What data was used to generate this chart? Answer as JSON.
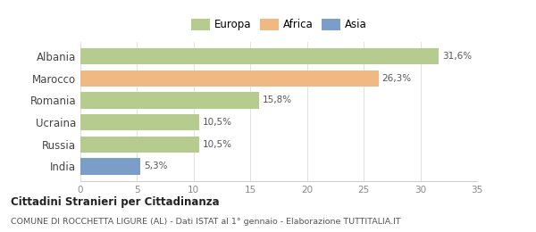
{
  "categories": [
    "Albania",
    "Marocco",
    "Romania",
    "Ucraina",
    "Russia",
    "India"
  ],
  "values": [
    31.6,
    26.3,
    15.8,
    10.5,
    10.5,
    5.3
  ],
  "labels": [
    "31,6%",
    "26,3%",
    "15,8%",
    "10,5%",
    "10,5%",
    "5,3%"
  ],
  "colors": [
    "#b5cc8e",
    "#f0b984",
    "#b5cc8e",
    "#b5cc8e",
    "#b5cc8e",
    "#7b9ec9"
  ],
  "legend": [
    {
      "label": "Europa",
      "color": "#b5cc8e"
    },
    {
      "label": "Africa",
      "color": "#f0b984"
    },
    {
      "label": "Asia",
      "color": "#7b9ec9"
    }
  ],
  "xlim": [
    0,
    35
  ],
  "xticks": [
    0,
    5,
    10,
    15,
    20,
    25,
    30,
    35
  ],
  "title": "Cittadini Stranieri per Cittadinanza",
  "subtitle": "COMUNE DI ROCCHETTA LIGURE (AL) - Dati ISTAT al 1° gennaio - Elaborazione TUTTITALIA.IT",
  "background_color": "#ffffff",
  "bar_height": 0.75
}
